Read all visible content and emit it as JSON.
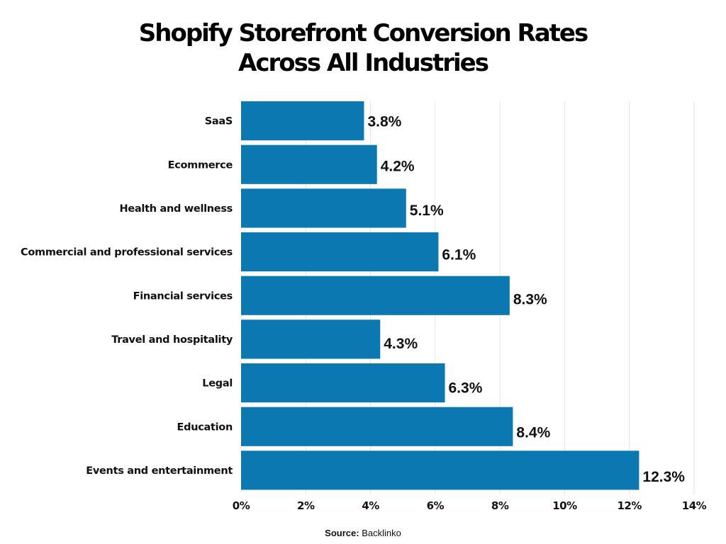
{
  "chart_data": {
    "type": "bar",
    "orientation": "horizontal",
    "title": "Shopify Storefront Conversion Rates Across All Industries",
    "title_lines": [
      "Shopify Storefront Conversion Rates",
      "Across All Industries"
    ],
    "categories": [
      "SaaS",
      "Ecommerce",
      "Health and wellness",
      "Commercial and professional services",
      "Financial services",
      "Travel and hospitality",
      "Legal",
      "Education",
      "Events and entertainment"
    ],
    "values": [
      3.8,
      4.2,
      5.1,
      6.1,
      8.3,
      4.3,
      6.3,
      8.4,
      12.3
    ],
    "value_labels": [
      "3.8%",
      "4.2%",
      "5.1%",
      "6.1%",
      "8.3%",
      "4.3%",
      "6.3%",
      "8.4%",
      "12.3%"
    ],
    "xlabel": "",
    "ylabel": "",
    "xlim": [
      0,
      14
    ],
    "xticks": [
      0,
      2,
      4,
      6,
      8,
      10,
      12,
      14
    ],
    "xtick_labels": [
      "0%",
      "2%",
      "4%",
      "6%",
      "8%",
      "10%",
      "12%",
      "14%"
    ],
    "grid": "vertical",
    "legend": "none",
    "bar_color": "#0b78b1",
    "grid_color": "#e3e3e3"
  },
  "source": {
    "label": "Source:",
    "value": "Backlinko"
  }
}
